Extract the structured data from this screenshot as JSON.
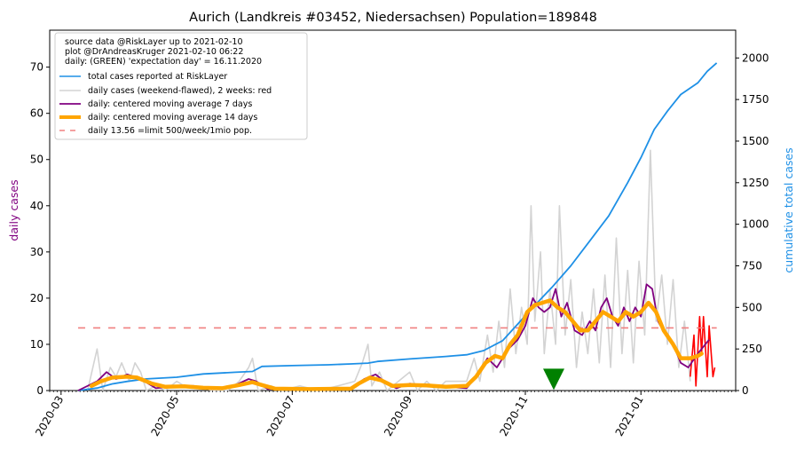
{
  "chart_data": {
    "type": "line",
    "title": "Aurich (Landkreis #03452, Niedersachsen) Population=189848",
    "ylabel_left": "daily cases",
    "ylabel_right": "cumulative total cases",
    "ylim_left": [
      0,
      78
    ],
    "ylim_right": [
      0,
      2167
    ],
    "xlim": [
      "2020-02-24",
      "2021-02-20"
    ],
    "x_ticks": [
      "2020-03",
      "2020-05",
      "2020-07",
      "2020-09",
      "2020-11",
      "2021-01"
    ],
    "y_ticks_left": [
      0,
      10,
      20,
      30,
      40,
      50,
      60,
      70
    ],
    "y_ticks_right": [
      0,
      250,
      500,
      750,
      1000,
      1250,
      1500,
      1750,
      2000
    ],
    "grid": false,
    "legend_position": "top-left",
    "legend_header": [
      "source data @RiskLayer up to 2021-02-10",
      "plot @DrAndreasKruger 2021-02-10 06:22",
      "daily: (GREEN) 'expectation day' = 16.11.2020"
    ],
    "colors": {
      "total": "#1e90e6",
      "daily": "#d3d3d3",
      "daily_recent": "#ff0000",
      "ma7": "#800080",
      "ma14": "#ffa500",
      "limit": "#f08080",
      "expectation": "#008000",
      "right_axis_label": "#1e90e6",
      "left_axis_label": "#800080"
    },
    "series": [
      {
        "name": "total cases reported at RiskLayer",
        "axis": "right",
        "points": [
          [
            "2020-03-10",
            0
          ],
          [
            "2020-03-20",
            15
          ],
          [
            "2020-03-28",
            40
          ],
          [
            "2020-04-05",
            55
          ],
          [
            "2020-04-15",
            70
          ],
          [
            "2020-05-01",
            80
          ],
          [
            "2020-05-15",
            100
          ],
          [
            "2020-06-01",
            110
          ],
          [
            "2020-06-10",
            115
          ],
          [
            "2020-06-15",
            145
          ],
          [
            "2020-07-01",
            150
          ],
          [
            "2020-07-20",
            155
          ],
          [
            "2020-08-01",
            160
          ],
          [
            "2020-08-10",
            165
          ],
          [
            "2020-08-15",
            175
          ],
          [
            "2020-09-01",
            190
          ],
          [
            "2020-09-20",
            205
          ],
          [
            "2020-10-01",
            215
          ],
          [
            "2020-10-10",
            240
          ],
          [
            "2020-10-20",
            300
          ],
          [
            "2020-10-28",
            400
          ],
          [
            "2020-11-05",
            500
          ],
          [
            "2020-11-15",
            620
          ],
          [
            "2020-11-25",
            750
          ],
          [
            "2020-12-05",
            900
          ],
          [
            "2020-12-15",
            1050
          ],
          [
            "2020-12-25",
            1250
          ],
          [
            "2021-01-01",
            1400
          ],
          [
            "2021-01-08",
            1570
          ],
          [
            "2021-01-15",
            1680
          ],
          [
            "2021-01-22",
            1780
          ],
          [
            "2021-01-31",
            1850
          ],
          [
            "2021-02-05",
            1920
          ],
          [
            "2021-02-10",
            1970
          ]
        ]
      },
      {
        "name": "daily cases (weekend-flawed), 2 weeks: red",
        "axis": "left",
        "points": [
          [
            "2020-03-15",
            0
          ],
          [
            "2020-03-20",
            9
          ],
          [
            "2020-03-23",
            0
          ],
          [
            "2020-03-27",
            5
          ],
          [
            "2020-03-30",
            3
          ],
          [
            "2020-04-02",
            6
          ],
          [
            "2020-04-06",
            2
          ],
          [
            "2020-04-09",
            6
          ],
          [
            "2020-04-12",
            4
          ],
          [
            "2020-04-15",
            0
          ],
          [
            "2020-04-20",
            1
          ],
          [
            "2020-04-25",
            0
          ],
          [
            "2020-05-01",
            2
          ],
          [
            "2020-05-05",
            1
          ],
          [
            "2020-05-10",
            1
          ],
          [
            "2020-05-20",
            0
          ],
          [
            "2020-05-28",
            0
          ],
          [
            "2020-06-03",
            2
          ],
          [
            "2020-06-08",
            5
          ],
          [
            "2020-06-10",
            7
          ],
          [
            "2020-06-13",
            0
          ],
          [
            "2020-06-20",
            1
          ],
          [
            "2020-06-25",
            0
          ],
          [
            "2020-07-05",
            1
          ],
          [
            "2020-07-15",
            0
          ],
          [
            "2020-07-25",
            1
          ],
          [
            "2020-08-03",
            2
          ],
          [
            "2020-08-07",
            6
          ],
          [
            "2020-08-10",
            10
          ],
          [
            "2020-08-12",
            1
          ],
          [
            "2020-08-16",
            4
          ],
          [
            "2020-08-20",
            0
          ],
          [
            "2020-09-01",
            4
          ],
          [
            "2020-09-05",
            0
          ],
          [
            "2020-09-10",
            2
          ],
          [
            "2020-09-15",
            0
          ],
          [
            "2020-09-20",
            2
          ],
          [
            "2020-10-01",
            2
          ],
          [
            "2020-10-05",
            7
          ],
          [
            "2020-10-08",
            2
          ],
          [
            "2020-10-12",
            12
          ],
          [
            "2020-10-15",
            4
          ],
          [
            "2020-10-18",
            15
          ],
          [
            "2020-10-21",
            5
          ],
          [
            "2020-10-24",
            22
          ],
          [
            "2020-10-27",
            8
          ],
          [
            "2020-10-30",
            18
          ],
          [
            "2020-11-02",
            10
          ],
          [
            "2020-11-04",
            40
          ],
          [
            "2020-11-06",
            15
          ],
          [
            "2020-11-09",
            30
          ],
          [
            "2020-11-11",
            8
          ],
          [
            "2020-11-14",
            22
          ],
          [
            "2020-11-17",
            10
          ],
          [
            "2020-11-19",
            40
          ],
          [
            "2020-11-22",
            12
          ],
          [
            "2020-11-25",
            24
          ],
          [
            "2020-11-28",
            5
          ],
          [
            "2020-12-01",
            17
          ],
          [
            "2020-12-04",
            8
          ],
          [
            "2020-12-07",
            22
          ],
          [
            "2020-12-10",
            6
          ],
          [
            "2020-12-13",
            25
          ],
          [
            "2020-12-16",
            5
          ],
          [
            "2020-12-19",
            33
          ],
          [
            "2020-12-22",
            8
          ],
          [
            "2020-12-25",
            26
          ],
          [
            "2020-12-28",
            6
          ],
          [
            "2020-12-31",
            28
          ],
          [
            "2021-01-03",
            12
          ],
          [
            "2021-01-06",
            52
          ],
          [
            "2021-01-09",
            15
          ],
          [
            "2021-01-12",
            25
          ],
          [
            "2021-01-15",
            10
          ],
          [
            "2021-01-18",
            24
          ],
          [
            "2021-01-21",
            5
          ],
          [
            "2021-01-24",
            15
          ],
          [
            "2021-01-27",
            2
          ]
        ]
      },
      {
        "name": "daily cases, last 2 weeks (red)",
        "axis": "left",
        "points": [
          [
            "2021-01-27",
            3
          ],
          [
            "2021-01-29",
            12
          ],
          [
            "2021-01-30",
            1
          ],
          [
            "2021-02-01",
            16
          ],
          [
            "2021-02-02",
            8
          ],
          [
            "2021-02-03",
            16
          ],
          [
            "2021-02-05",
            3
          ],
          [
            "2021-02-06",
            14
          ],
          [
            "2021-02-08",
            3
          ],
          [
            "2021-02-09",
            5
          ]
        ]
      },
      {
        "name": "daily: centered moving average 7 days",
        "axis": "left",
        "points": [
          [
            "2020-03-10",
            0
          ],
          [
            "2020-03-20",
            2
          ],
          [
            "2020-03-25",
            4
          ],
          [
            "2020-03-30",
            2.5
          ],
          [
            "2020-04-05",
            3.5
          ],
          [
            "2020-04-12",
            2.5
          ],
          [
            "2020-04-20",
            0.5
          ],
          [
            "2020-05-01",
            1
          ],
          [
            "2020-05-10",
            1
          ],
          [
            "2020-05-20",
            0.3
          ],
          [
            "2020-06-01",
            1.2
          ],
          [
            "2020-06-08",
            2.5
          ],
          [
            "2020-06-12",
            2
          ],
          [
            "2020-06-18",
            0.3
          ],
          [
            "2020-07-01",
            0.4
          ],
          [
            "2020-07-20",
            0.3
          ],
          [
            "2020-08-01",
            0.6
          ],
          [
            "2020-08-08",
            2.5
          ],
          [
            "2020-08-14",
            3.5
          ],
          [
            "2020-08-20",
            1.5
          ],
          [
            "2020-08-25",
            0.5
          ],
          [
            "2020-09-01",
            1.5
          ],
          [
            "2020-09-10",
            1
          ],
          [
            "2020-09-20",
            0.8
          ],
          [
            "2020-10-01",
            0.5
          ],
          [
            "2020-10-06",
            3
          ],
          [
            "2020-10-12",
            7
          ],
          [
            "2020-10-17",
            5
          ],
          [
            "2020-10-23",
            9
          ],
          [
            "2020-10-28",
            11
          ],
          [
            "2020-11-01",
            14
          ],
          [
            "2020-11-05",
            20
          ],
          [
            "2020-11-08",
            18
          ],
          [
            "2020-11-11",
            17
          ],
          [
            "2020-11-14",
            18
          ],
          [
            "2020-11-17",
            22
          ],
          [
            "2020-11-20",
            16
          ],
          [
            "2020-11-23",
            19
          ],
          [
            "2020-11-27",
            13
          ],
          [
            "2020-12-01",
            12
          ],
          [
            "2020-12-05",
            15
          ],
          [
            "2020-12-08",
            13
          ],
          [
            "2020-12-11",
            18
          ],
          [
            "2020-12-14",
            20
          ],
          [
            "2020-12-17",
            16
          ],
          [
            "2020-12-20",
            14
          ],
          [
            "2020-12-23",
            18
          ],
          [
            "2020-12-26",
            15
          ],
          [
            "2020-12-29",
            18
          ],
          [
            "2021-01-01",
            16
          ],
          [
            "2021-01-04",
            23
          ],
          [
            "2021-01-07",
            22
          ],
          [
            "2021-01-10",
            15
          ],
          [
            "2021-01-14",
            12
          ],
          [
            "2021-01-18",
            10
          ],
          [
            "2021-01-22",
            6
          ],
          [
            "2021-01-26",
            5
          ],
          [
            "2021-01-31",
            8
          ],
          [
            "2021-02-04",
            10
          ],
          [
            "2021-02-06",
            11
          ]
        ]
      },
      {
        "name": "daily: centered moving average 14 days",
        "axis": "left",
        "points": [
          [
            "2020-03-17",
            1
          ],
          [
            "2020-03-22",
            2
          ],
          [
            "2020-03-28",
            2.8
          ],
          [
            "2020-04-05",
            3
          ],
          [
            "2020-04-10",
            2.8
          ],
          [
            "2020-04-18",
            1.5
          ],
          [
            "2020-04-25",
            0.8
          ],
          [
            "2020-05-05",
            0.9
          ],
          [
            "2020-05-15",
            0.6
          ],
          [
            "2020-05-25",
            0.5
          ],
          [
            "2020-06-03",
            1.2
          ],
          [
            "2020-06-10",
            1.8
          ],
          [
            "2020-06-15",
            1.2
          ],
          [
            "2020-06-22",
            0.4
          ],
          [
            "2020-07-10",
            0.3
          ],
          [
            "2020-08-01",
            0.4
          ],
          [
            "2020-08-05",
            1.5
          ],
          [
            "2020-08-11",
            2.8
          ],
          [
            "2020-08-17",
            2.2
          ],
          [
            "2020-08-23",
            1
          ],
          [
            "2020-09-01",
            1.2
          ],
          [
            "2020-09-10",
            1.1
          ],
          [
            "2020-09-20",
            0.8
          ],
          [
            "2020-10-01",
            1
          ],
          [
            "2020-10-06",
            3
          ],
          [
            "2020-10-11",
            6
          ],
          [
            "2020-10-16",
            7.5
          ],
          [
            "2020-10-20",
            7
          ],
          [
            "2020-10-24",
            10
          ],
          [
            "2020-10-28",
            12
          ],
          [
            "2020-11-02",
            17
          ],
          [
            "2020-11-06",
            18.5
          ],
          [
            "2020-11-10",
            19
          ],
          [
            "2020-11-14",
            19.5
          ],
          [
            "2020-11-18",
            18
          ],
          [
            "2020-11-22",
            17
          ],
          [
            "2020-11-26",
            15
          ],
          [
            "2020-11-30",
            13
          ],
          [
            "2020-12-04",
            13
          ],
          [
            "2020-12-08",
            15
          ],
          [
            "2020-12-12",
            17
          ],
          [
            "2020-12-16",
            16
          ],
          [
            "2020-12-20",
            15
          ],
          [
            "2020-12-24",
            17
          ],
          [
            "2020-12-28",
            16
          ],
          [
            "2021-01-01",
            17
          ],
          [
            "2021-01-05",
            19
          ],
          [
            "2021-01-09",
            17
          ],
          [
            "2021-01-13",
            13
          ],
          [
            "2021-01-18",
            10
          ],
          [
            "2021-01-22",
            7
          ],
          [
            "2021-01-27",
            7
          ],
          [
            "2021-01-31",
            7.5
          ],
          [
            "2021-02-02",
            8
          ]
        ]
      },
      {
        "name": "daily 13.56 =limit 500/week/1mio pop.",
        "axis": "left",
        "value": 13.56,
        "x_range": [
          "2020-03-10",
          "2021-02-10"
        ]
      }
    ],
    "annotations": [
      {
        "type": "marker",
        "shape": "triangle-down",
        "x": "2020-11-16",
        "y": 3,
        "color": "#008000",
        "label": "expectation day"
      }
    ]
  }
}
